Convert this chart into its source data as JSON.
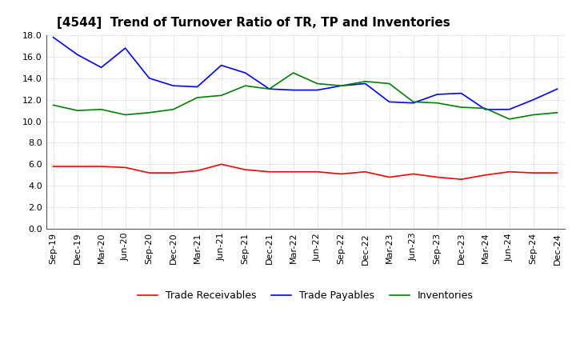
{
  "title": "[4544]  Trend of Turnover Ratio of TR, TP and Inventories",
  "ylim": [
    0.0,
    18.0
  ],
  "yticks": [
    0.0,
    2.0,
    4.0,
    6.0,
    8.0,
    10.0,
    12.0,
    14.0,
    16.0,
    18.0
  ],
  "x_labels": [
    "Sep-19",
    "Dec-19",
    "Mar-20",
    "Jun-20",
    "Sep-20",
    "Dec-20",
    "Mar-21",
    "Jun-21",
    "Sep-21",
    "Dec-21",
    "Mar-22",
    "Jun-22",
    "Sep-22",
    "Dec-22",
    "Mar-23",
    "Jun-23",
    "Sep-23",
    "Dec-23",
    "Mar-24",
    "Jun-24",
    "Sep-24",
    "Dec-24"
  ],
  "trade_receivables": [
    5.8,
    5.8,
    5.8,
    5.7,
    5.2,
    5.2,
    5.4,
    6.0,
    5.5,
    5.3,
    5.3,
    5.3,
    5.1,
    5.3,
    4.8,
    5.1,
    4.8,
    4.6,
    5.0,
    5.3,
    5.2,
    5.2
  ],
  "trade_payables": [
    17.8,
    16.2,
    15.0,
    16.8,
    14.0,
    13.3,
    13.2,
    15.2,
    14.5,
    13.0,
    12.9,
    12.9,
    13.3,
    13.5,
    11.8,
    11.7,
    12.5,
    12.6,
    11.1,
    11.1,
    12.0,
    13.0
  ],
  "inventories": [
    11.5,
    11.0,
    11.1,
    10.6,
    10.8,
    11.1,
    12.2,
    12.4,
    13.3,
    13.0,
    14.5,
    13.5,
    13.3,
    13.7,
    13.5,
    11.8,
    11.7,
    11.3,
    11.2,
    10.2,
    10.6,
    10.8
  ],
  "tr_color": "#ff0000",
  "tp_color": "#0000ff",
  "inv_color": "#008000",
  "tr_label": "Trade Receivables",
  "tp_label": "Trade Payables",
  "inv_label": "Inventories",
  "background_color": "#ffffff",
  "grid_color": "#888888",
  "title_fontsize": 11,
  "legend_fontsize": 9,
  "tick_fontsize": 8
}
